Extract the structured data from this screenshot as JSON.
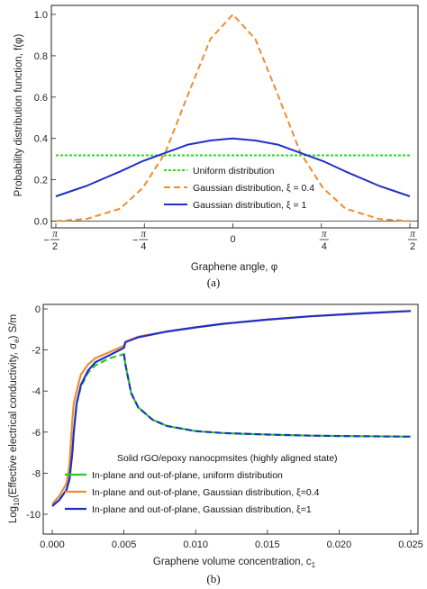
{
  "chart_data": [
    {
      "type": "line",
      "caption": "(a)",
      "xlabel": "Graphene angle, φ",
      "ylabel": "Probability distribution function, f(φ)",
      "xlim": [
        -1.5708,
        1.5708
      ],
      "ylim": [
        -0.03,
        1.05
      ],
      "x_ticks": [
        {
          "value": -1.5708,
          "sign": "−",
          "num": "π",
          "den": "2"
        },
        {
          "value": -0.7854,
          "sign": "−",
          "num": "π",
          "den": "4"
        },
        {
          "value": 0,
          "label": "0"
        },
        {
          "value": 0.7854,
          "sign": "",
          "num": "π",
          "den": "4"
        },
        {
          "value": 1.5708,
          "sign": "",
          "num": "π",
          "den": "2"
        }
      ],
      "y_ticks": [
        "0.0",
        "0.2",
        "0.4",
        "0.6",
        "0.8",
        "1.0"
      ],
      "y_tick_values": [
        0,
        0.2,
        0.4,
        0.6,
        0.8,
        1.0
      ],
      "legend_position": "bottom-center",
      "series": [
        {
          "name": "Uniform distribution",
          "color": "#22dd22",
          "dash": "dotted",
          "x": [
            -1.5708,
            -0.7854,
            0,
            0.7854,
            1.5708
          ],
          "y": [
            0.318,
            0.318,
            0.318,
            0.318,
            0.318
          ]
        },
        {
          "name": "Gaussian distribution, ξ = 0.4",
          "color": "#ef8c2e",
          "dash": "dashed",
          "x": [
            -1.5708,
            -1.3,
            -1.0,
            -0.8,
            -0.6,
            -0.4,
            -0.2,
            0,
            0.2,
            0.4,
            0.6,
            0.8,
            1.0,
            1.3,
            1.5708
          ],
          "y": [
            0.0,
            0.01,
            0.06,
            0.16,
            0.33,
            0.61,
            0.88,
            1.0,
            0.88,
            0.61,
            0.33,
            0.16,
            0.06,
            0.01,
            0.0
          ]
        },
        {
          "name": "Gaussian distribution, ξ = 1",
          "color": "#1f2fc8",
          "dash": "solid",
          "x": [
            -1.5708,
            -1.3,
            -1.0,
            -0.8,
            -0.6,
            -0.4,
            -0.2,
            0,
            0.2,
            0.4,
            0.6,
            0.8,
            1.0,
            1.3,
            1.5708
          ],
          "y": [
            0.12,
            0.17,
            0.24,
            0.29,
            0.33,
            0.37,
            0.39,
            0.4,
            0.39,
            0.37,
            0.33,
            0.29,
            0.24,
            0.17,
            0.12
          ]
        }
      ]
    },
    {
      "type": "line",
      "caption": "(b)",
      "xlabel": "Graphene volume concentration, c",
      "xlabel_sub": "1",
      "ylabel": "Log",
      "ylabel_sub": "10",
      "ylabel_rest": "(Effective electrical conductivity, σ",
      "ylabel_sub2": "e",
      "ylabel_end": ") S/m",
      "xlim": [
        -0.0008,
        0.0252
      ],
      "ylim": [
        -10.3,
        0.3
      ],
      "x_ticks": [
        "0.000",
        "0.005",
        "0.010",
        "0.015",
        "0.020",
        "0.025"
      ],
      "x_tick_values": [
        0,
        0.005,
        0.01,
        0.015,
        0.02,
        0.025
      ],
      "y_ticks": [
        "-10",
        "-8",
        "-6",
        "-4",
        "-2",
        "0"
      ],
      "y_tick_values": [
        -10,
        -8,
        -6,
        -4,
        -2,
        0
      ],
      "legend_position": "bottom-right",
      "legend_title": "Solid rGO/epoxy nanocpmsites (highly aligned state)",
      "series": [
        {
          "name": "In-plane and out-of-plane, uniform distribution",
          "color": "#22cc22",
          "dash": "dashed",
          "x": [
            0,
            0.0005,
            0.001,
            0.0012,
            0.0014,
            0.0015,
            0.0016,
            0.0017,
            0.002,
            0.0025,
            0.003,
            0.004,
            0.005,
            0.0051,
            0.0055,
            0.006,
            0.007,
            0.008,
            0.01,
            0.012,
            0.015,
            0.018,
            0.02,
            0.022,
            0.025
          ],
          "y": [
            -9.6,
            -9.3,
            -8.8,
            -8.3,
            -7.0,
            -6.0,
            -5.3,
            -4.6,
            -3.8,
            -3.1,
            -2.75,
            -2.4,
            -2.2,
            -2.7,
            -4.1,
            -4.8,
            -5.4,
            -5.7,
            -5.95,
            -6.05,
            -6.12,
            -6.17,
            -6.19,
            -6.2,
            -6.22
          ]
        },
        {
          "name": "In-plane and out-of-plane, Gaussian distribution, ξ=0.4",
          "color": "#ef8c2e",
          "dash": "solid",
          "x": [
            0,
            0.0005,
            0.001,
            0.0012,
            0.0013,
            0.0014,
            0.0015,
            0.0018,
            0.002,
            0.0025,
            0.003,
            0.004,
            0.005,
            0.0051,
            0.006,
            0.008,
            0.01,
            0.012,
            0.015,
            0.018,
            0.02,
            0.022,
            0.025
          ],
          "y": [
            -9.5,
            -9.1,
            -8.5,
            -7.6,
            -6.5,
            -5.4,
            -4.6,
            -3.7,
            -3.2,
            -2.7,
            -2.4,
            -2.1,
            -1.8,
            -1.6,
            -1.35,
            -1.1,
            -0.9,
            -0.72,
            -0.52,
            -0.36,
            -0.28,
            -0.2,
            -0.1
          ]
        },
        {
          "name": "In-plane and out-of-plane, Gaussian distribution, ξ=1",
          "color": "#1f2fc8",
          "dash": "solid",
          "x": [
            0,
            0.0005,
            0.001,
            0.0012,
            0.0014,
            0.0015,
            0.0016,
            0.0017,
            0.002,
            0.0025,
            0.003,
            0.004,
            0.005,
            0.0051,
            0.006,
            0.008,
            0.01,
            0.012,
            0.015,
            0.018,
            0.02,
            0.022,
            0.025
          ],
          "y": [
            -9.6,
            -9.3,
            -8.8,
            -8.3,
            -7.0,
            -6.0,
            -5.3,
            -4.6,
            -3.7,
            -3.0,
            -2.6,
            -2.25,
            -1.9,
            -1.62,
            -1.38,
            -1.1,
            -0.9,
            -0.72,
            -0.52,
            -0.36,
            -0.28,
            -0.2,
            -0.1
          ]
        },
        {
          "name": "",
          "color": "#1f2fc8",
          "dash": "dashed",
          "legend": false,
          "x": [
            0.005,
            0.0051,
            0.0055,
            0.006,
            0.007,
            0.008,
            0.01,
            0.012,
            0.015,
            0.018,
            0.02,
            0.022,
            0.025
          ],
          "y": [
            -2.2,
            -2.7,
            -4.1,
            -4.8,
            -5.4,
            -5.7,
            -5.95,
            -6.05,
            -6.12,
            -6.17,
            -6.19,
            -6.2,
            -6.22
          ]
        }
      ]
    }
  ]
}
